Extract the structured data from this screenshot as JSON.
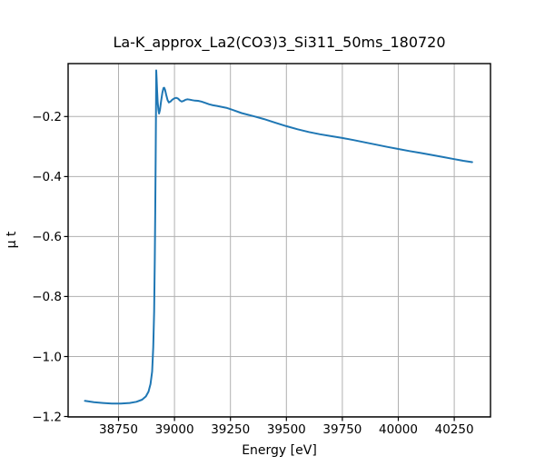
{
  "figure": {
    "background_color": "#ffffff"
  },
  "chart_data": {
    "type": "line",
    "title": "La-K_approx_La2(CO3)3_Si311_50ms_180720",
    "xlabel": "Energy [eV]",
    "ylabel": "μ t",
    "xlim": [
      38524.8,
      40411.9
    ],
    "ylim": [
      -1.2015,
      -0.0234
    ],
    "grid": true,
    "legend": "none",
    "x_ticks": [
      38750,
      39000,
      39250,
      39500,
      39750,
      40000,
      40250
    ],
    "x_tick_labels": [
      "38750",
      "39000",
      "39250",
      "39500",
      "39750",
      "40000",
      "40250"
    ],
    "y_ticks": [
      -0.2,
      -0.4,
      -0.6,
      -0.8,
      -1.0,
      -1.2
    ],
    "y_tick_labels": [
      "−0.2",
      "−0.4",
      "−0.6",
      "−0.8",
      "−1.0",
      "−1.2"
    ],
    "colors": {
      "line": "#1f77b4",
      "grid": "#b0b0b0",
      "spine": "#000000",
      "background": "#ffffff"
    },
    "series": [
      {
        "name": "mu_t_spectrum",
        "x": [
          38600,
          38640,
          38680,
          38720,
          38760,
          38800,
          38830,
          38855,
          38872,
          38884,
          38893,
          38900,
          38905,
          38909,
          38912,
          38914,
          38916,
          38917.5,
          38918.5,
          38920,
          38922,
          38925,
          38928,
          38931,
          38935,
          38940,
          38946,
          38951,
          38954,
          38958,
          38963,
          38969,
          38975,
          38982,
          38990,
          39000,
          39008,
          39016,
          39025,
          39032,
          39040,
          39050,
          39058,
          39068,
          39080,
          39092,
          39105,
          39120,
          39138,
          39155,
          39172,
          39190,
          39210,
          39235,
          39265,
          39300,
          39352,
          39400,
          39450,
          39500,
          39550,
          39600,
          39650,
          39700,
          39750,
          39800,
          39850,
          39900,
          39950,
          40000,
          40050,
          40100,
          40150,
          40200,
          40250,
          40290,
          40330
        ],
        "y": [
          -1.148,
          -1.152,
          -1.155,
          -1.157,
          -1.157,
          -1.155,
          -1.151,
          -1.144,
          -1.133,
          -1.117,
          -1.092,
          -1.05,
          -0.97,
          -0.85,
          -0.68,
          -0.52,
          -0.33,
          -0.15,
          -0.046,
          -0.072,
          -0.11,
          -0.152,
          -0.178,
          -0.19,
          -0.178,
          -0.15,
          -0.12,
          -0.105,
          -0.104,
          -0.111,
          -0.128,
          -0.145,
          -0.153,
          -0.15,
          -0.144,
          -0.139,
          -0.1375,
          -0.14,
          -0.147,
          -0.15,
          -0.148,
          -0.144,
          -0.1425,
          -0.1435,
          -0.1455,
          -0.147,
          -0.1475,
          -0.15,
          -0.1545,
          -0.159,
          -0.1625,
          -0.1645,
          -0.1675,
          -0.1715,
          -0.179,
          -0.1885,
          -0.1985,
          -0.2085,
          -0.2205,
          -0.232,
          -0.2425,
          -0.2515,
          -0.259,
          -0.2655,
          -0.2715,
          -0.2785,
          -0.286,
          -0.2935,
          -0.301,
          -0.308,
          -0.315,
          -0.3215,
          -0.328,
          -0.335,
          -0.342,
          -0.3475,
          -0.352
        ]
      }
    ]
  }
}
